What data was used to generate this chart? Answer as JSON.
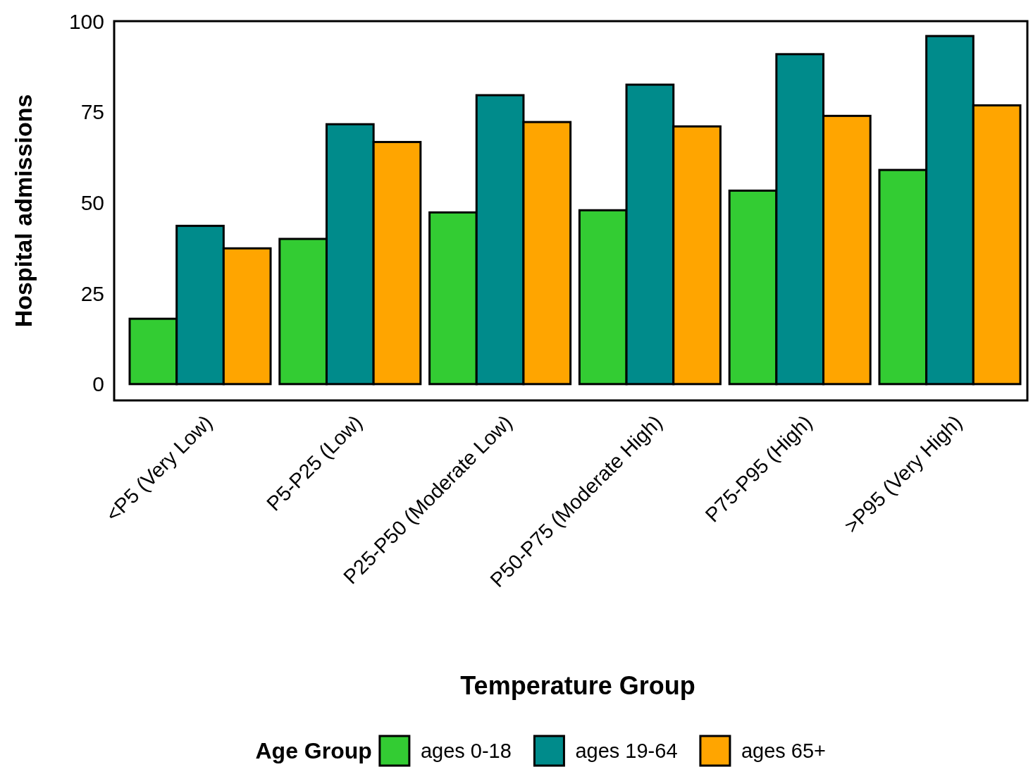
{
  "chart_data": {
    "type": "bar",
    "xlabel": "Temperature Group",
    "ylabel": "Hospital admissions",
    "legend_title": "Age Group",
    "categories": [
      "<P5 (Very Low)",
      "P5-P25 (Low)",
      "P25-P50 (Moderate Low)",
      "P50-P75 (Moderate High)",
      "P75-P95 (High)",
      ">P95 (Very High)"
    ],
    "series": [
      {
        "name": "ages 0-18",
        "color": "#33cc33",
        "values": [
          18,
          40,
          47.3,
          47.9,
          53.3,
          59
        ]
      },
      {
        "name": "ages 19-64",
        "color": "#008b8b",
        "values": [
          43.6,
          71.6,
          79.6,
          82.5,
          90.9,
          95.9
        ]
      },
      {
        "name": "ages 65+",
        "color": "#ffa500",
        "values": [
          37.4,
          66.7,
          72.2,
          71,
          73.9,
          76.8
        ]
      }
    ],
    "ylim": [
      -4.5,
      100
    ],
    "yticks": [
      0,
      25,
      50,
      75,
      100
    ],
    "legend": "bottom"
  }
}
